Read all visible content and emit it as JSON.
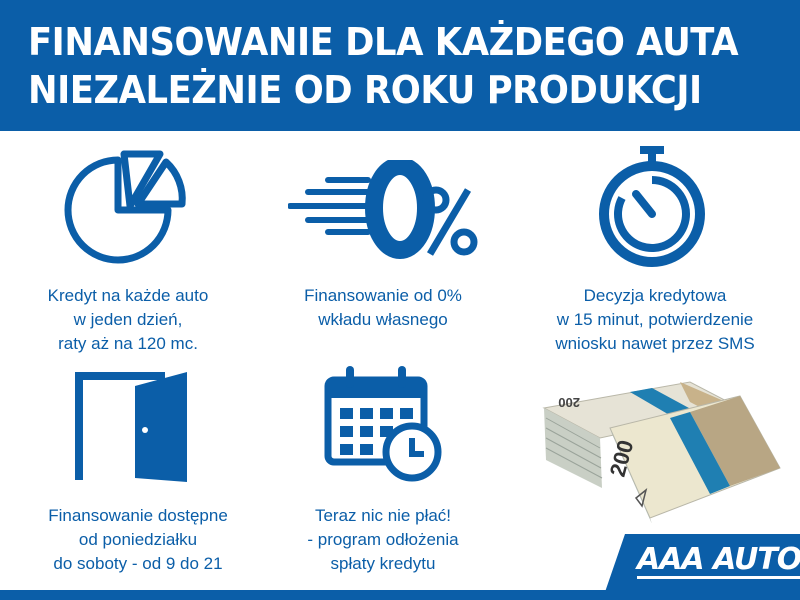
{
  "header": {
    "line1": "FINANSOWANIE DLA KAŻDEGO AUTA",
    "line2": "NIEZALEŻNIE OD ROKU PRODUKCJI"
  },
  "features": [
    {
      "icon": "pie-chart-icon",
      "lines": [
        "Kredyt na każde auto",
        "w jeden dzień,",
        "raty aż na 120 mc."
      ]
    },
    {
      "icon": "zero-percent-icon",
      "icon_text": "0%",
      "lines": [
        "Finansowanie od 0%",
        "wkładu własnego"
      ]
    },
    {
      "icon": "stopwatch-icon",
      "lines": [
        "Decyzja kredytowa",
        "w 15 minut, potwierdzenie",
        "wniosku nawet przez SMS"
      ]
    },
    {
      "icon": "open-door-icon",
      "lines": [
        "Finansowanie dostępne",
        "od poniedziałku",
        "do soboty - od 9 do 21"
      ]
    },
    {
      "icon": "calendar-clock-icon",
      "lines": [
        "Teraz nic nie płać!",
        "- program odłożenia",
        "spłaty kredytu"
      ]
    }
  ],
  "image": {
    "icon": "banknote-stacks-image",
    "banknote_value": "200"
  },
  "logo": {
    "text": "AAA AUTO"
  },
  "colors": {
    "brand_blue": "#0b5ea8",
    "background": "#ffffff"
  }
}
